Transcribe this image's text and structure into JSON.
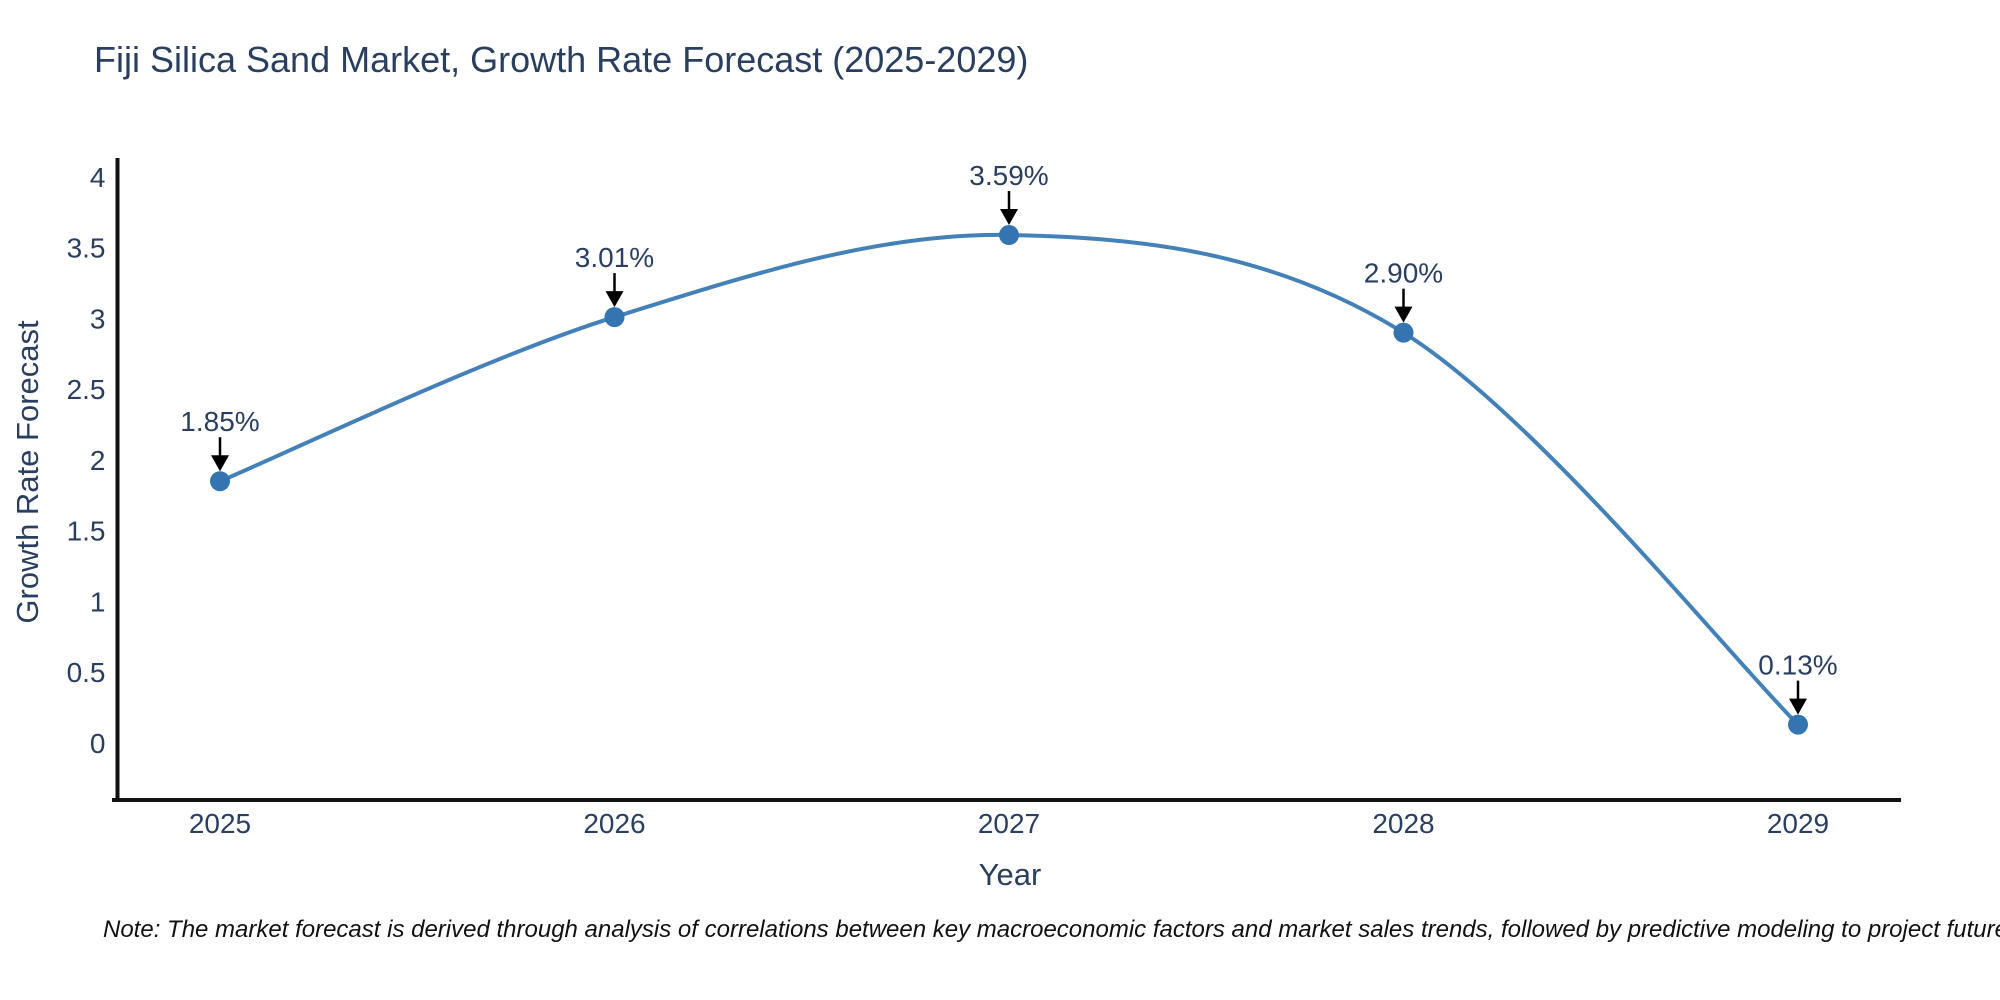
{
  "title": "Fiji Silica Sand Market, Growth Rate Forecast (2025-2029)",
  "note": "Note: The market forecast is derived through analysis of correlations between key macroeconomic factors and market sales trends, followed by predictive modeling to project future sales",
  "chart_data": {
    "type": "line",
    "title": "Fiji Silica Sand Market, Growth Rate Forecast (2025-2029)",
    "categories": [
      "2025",
      "2026",
      "2027",
      "2028",
      "2029"
    ],
    "series": [
      {
        "name": "Growth Rate Forecast",
        "values": [
          1.85,
          3.01,
          3.59,
          2.9,
          0.13
        ]
      }
    ],
    "point_labels": [
      "1.85%",
      "3.01%",
      "3.59%",
      "2.90%",
      "0.13%"
    ],
    "xlabel": "Year",
    "ylabel": "Growth Rate Forecast",
    "ylim": [
      0,
      4
    ],
    "yticks": [
      0,
      0.5,
      1,
      1.5,
      2,
      2.5,
      3,
      3.5,
      4
    ],
    "ytick_labels": [
      "0",
      "0.5",
      "1",
      "1.5",
      "2",
      "2.5",
      "3",
      "3.5",
      "4"
    ],
    "line_shape": "spline",
    "grid": false,
    "legend": false,
    "annotation_arrows": true,
    "colors": {
      "line": "#4381b8",
      "marker": "#3474b0",
      "axis": "#111111",
      "arrow": "#000000",
      "chart_text": "#2a3f5f",
      "note_text": "#111111",
      "background": "#ffffff"
    }
  }
}
